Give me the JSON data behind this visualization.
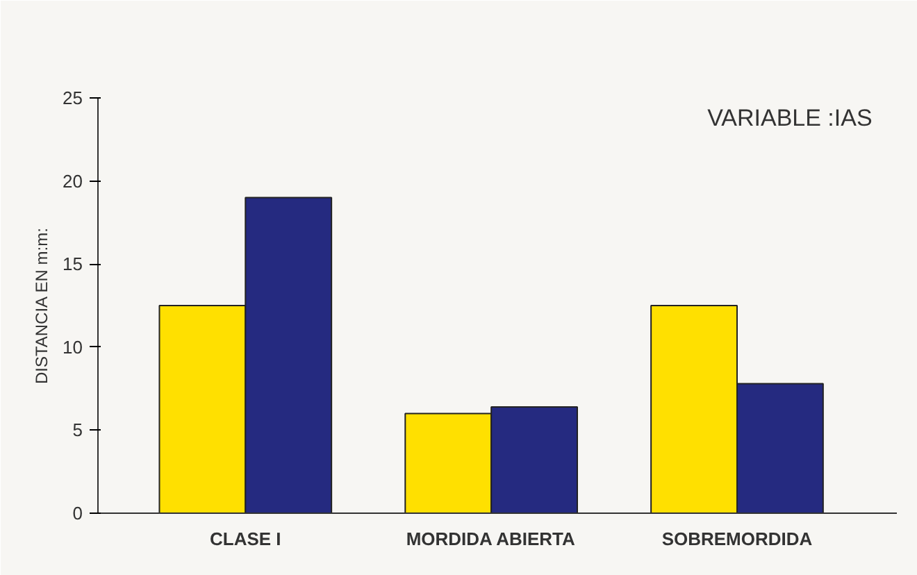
{
  "chart_data": {
    "type": "bar",
    "title": "VARIABLE :IAS",
    "ylabel": "DISTANCIA EN m:m:",
    "categories": [
      "CLASE I",
      "MORDIDA ABIERTA",
      "SOBREMORDIDA"
    ],
    "series": [
      {
        "color": "#ffe000",
        "values": [
          12.5,
          6.0,
          12.5
        ]
      },
      {
        "color": "#252a80",
        "values": [
          19.0,
          6.4,
          7.8
        ]
      }
    ],
    "ylim": [
      0,
      25
    ],
    "yticks": [
      0,
      5,
      10,
      15,
      20,
      25
    ]
  }
}
